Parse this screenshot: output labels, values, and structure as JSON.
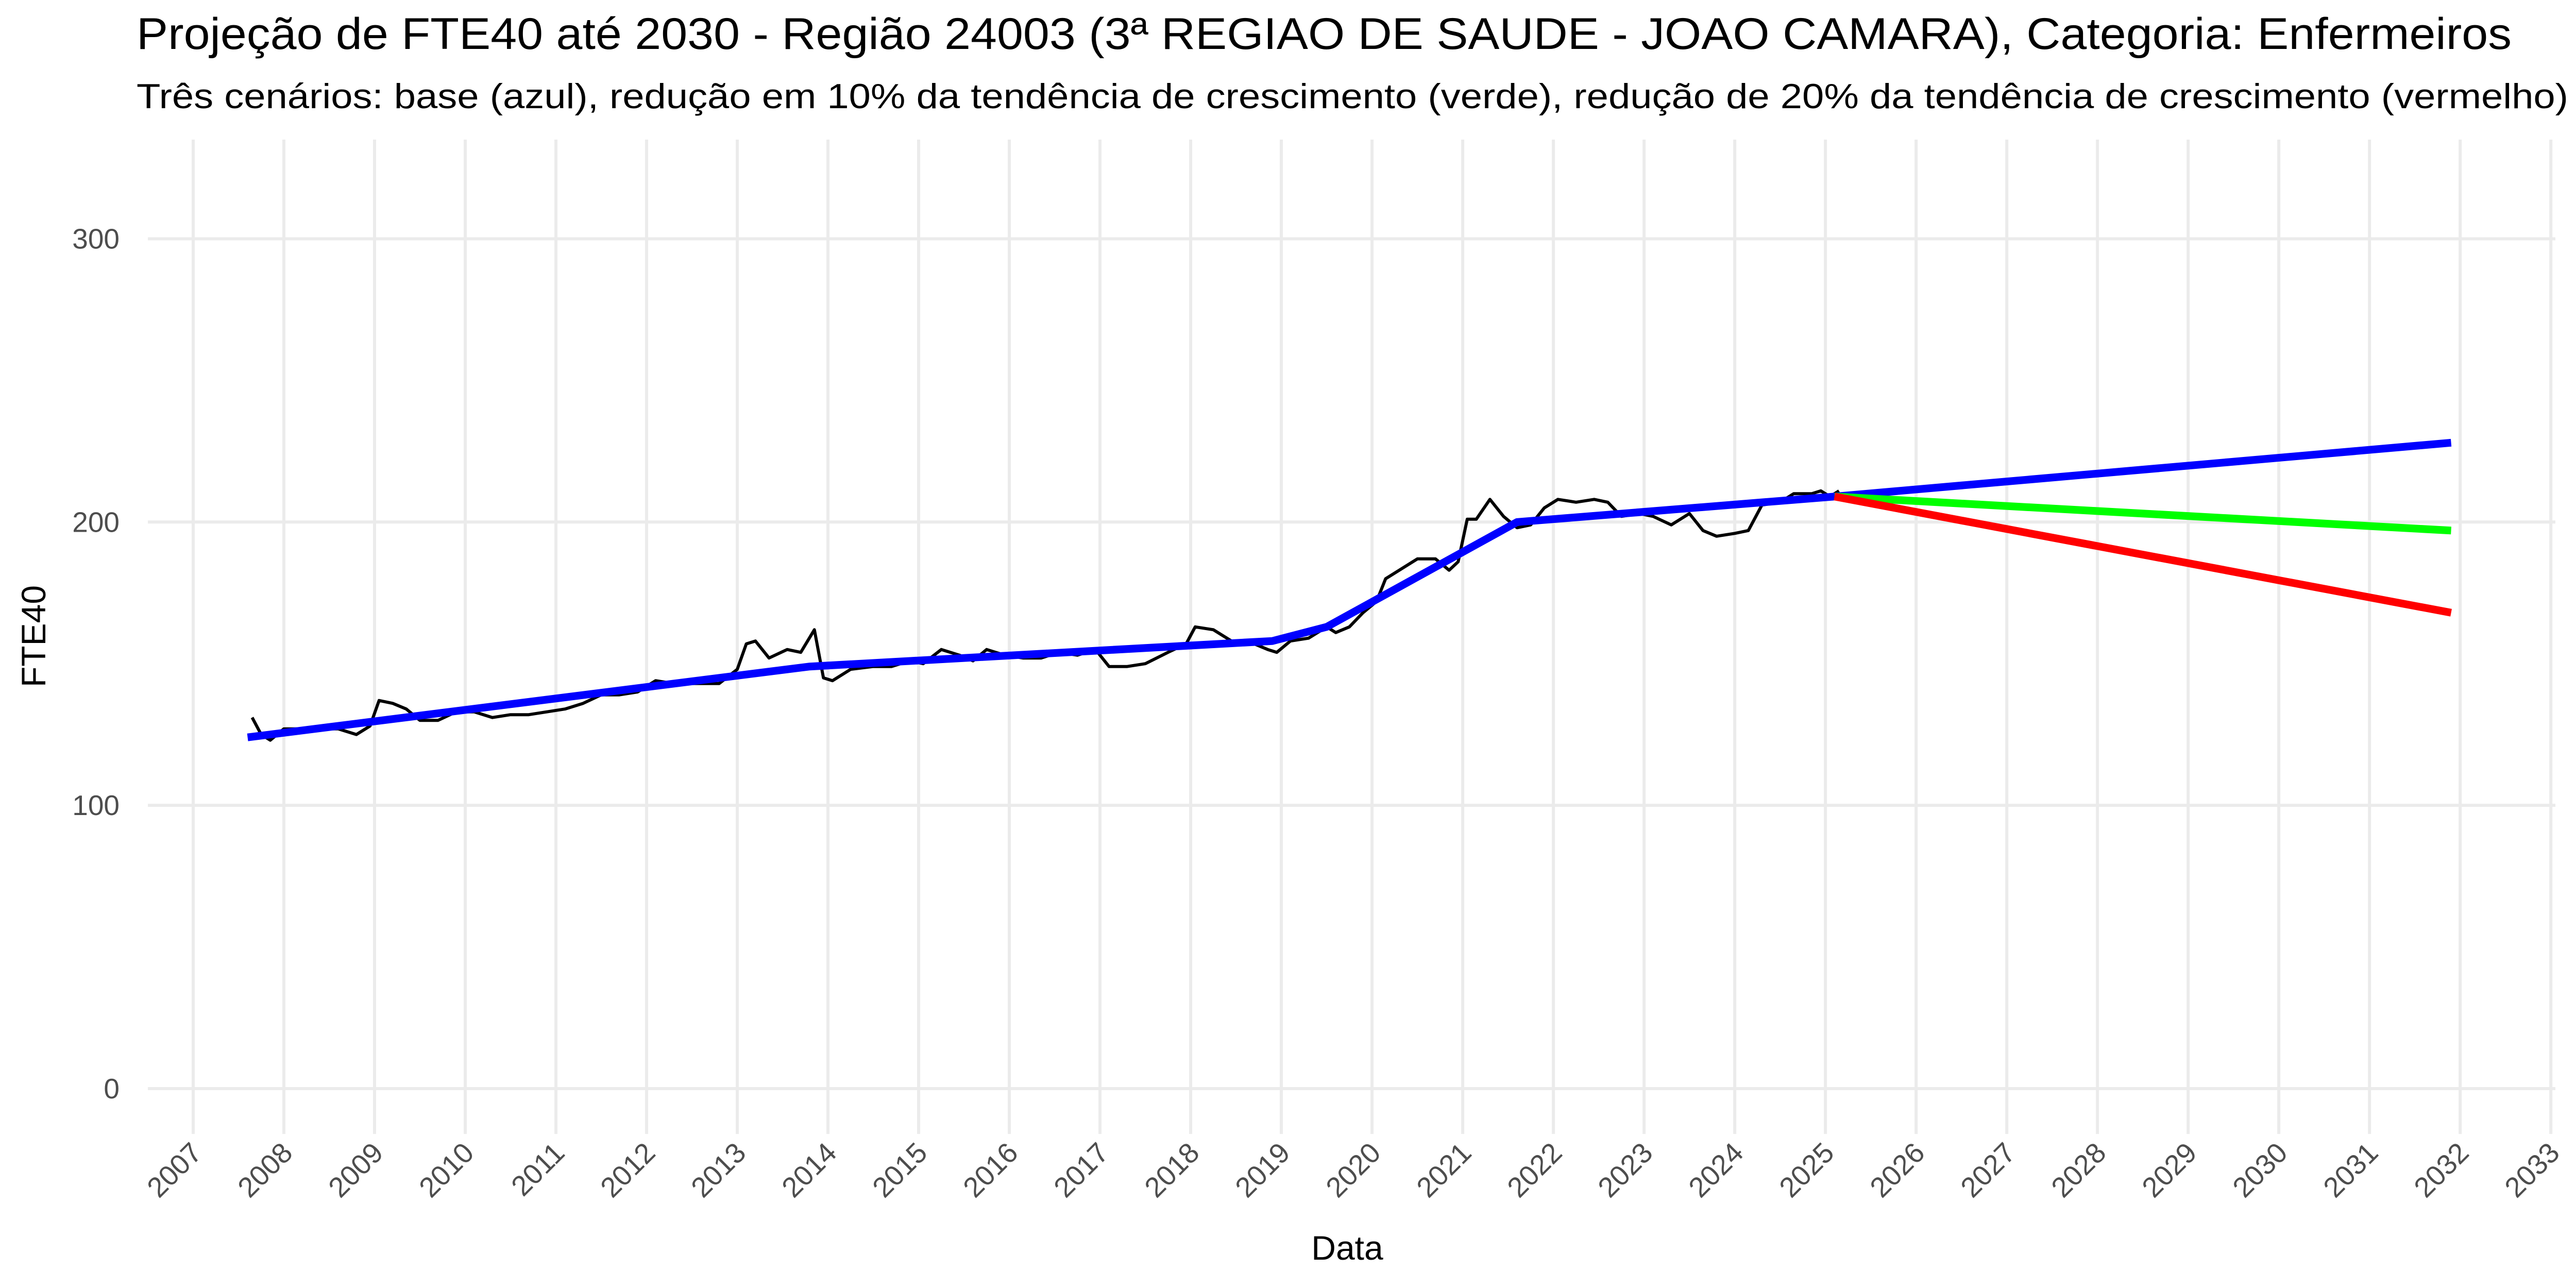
{
  "chart_data": {
    "type": "line",
    "title": "Projeção de FTE40 até 2030 - Região 24003 (3ª REGIAO DE SAUDE - JOAO CAMARA), Categoria: Enfermeiros",
    "subtitle": "Três cenários: base (azul), redução em 10% da tendência de crescimento (verde), redução de 20% da tendência de crescimento (vermelho)",
    "x_label": "Data",
    "y_label": "FTE40",
    "xlim": [
      2006.5,
      2033.05
    ],
    "ylim": [
      -16,
      335
    ],
    "xticks": [
      2007,
      2008,
      2009,
      2010,
      2011,
      2012,
      2013,
      2014,
      2015,
      2016,
      2017,
      2018,
      2019,
      2020,
      2021,
      2022,
      2023,
      2024,
      2025,
      2026,
      2027,
      2028,
      2029,
      2030,
      2031,
      2032,
      2033
    ],
    "yticks": [
      0,
      100,
      200,
      300
    ],
    "grid": true,
    "series": [
      {
        "color": "#000000",
        "width": 6,
        "x": [
          2007.65,
          2007.75,
          2007.85,
          2008.0,
          2008.3,
          2008.6,
          2008.8,
          2008.95,
          2009.05,
          2009.2,
          2009.35,
          2009.5,
          2009.7,
          2009.9,
          2010.1,
          2010.3,
          2010.5,
          2010.7,
          2010.9,
          2011.1,
          2011.3,
          2011.5,
          2011.7,
          2011.9,
          2012.1,
          2012.3,
          2012.5,
          2012.8,
          2013.0,
          2013.1,
          2013.2,
          2013.35,
          2013.55,
          2013.7,
          2013.85,
          2013.95,
          2014.05,
          2014.25,
          2014.5,
          2014.7,
          2014.9,
          2015.05,
          2015.25,
          2015.45,
          2015.6,
          2015.75,
          2015.95,
          2016.15,
          2016.35,
          2016.55,
          2016.75,
          2016.95,
          2017.1,
          2017.3,
          2017.5,
          2017.75,
          2017.95,
          2018.05,
          2018.25,
          2018.45,
          2018.7,
          2018.85,
          2018.95,
          2019.1,
          2019.3,
          2019.5,
          2019.6,
          2019.75,
          2019.9,
          2020.05,
          2020.15,
          2020.3,
          2020.5,
          2020.7,
          2020.85,
          2020.95,
          2021.05,
          2021.15,
          2021.3,
          2021.45,
          2021.6,
          2021.75,
          2021.9,
          2022.05,
          2022.25,
          2022.45,
          2022.6,
          2022.75,
          2022.95,
          2023.1,
          2023.3,
          2023.5,
          2023.65,
          2023.8,
          2024.0,
          2024.15,
          2024.3,
          2024.5,
          2024.65,
          2024.85,
          2024.95,
          2025.05,
          2025.15
        ],
        "values": [
          131,
          125,
          123,
          127,
          127,
          127,
          125,
          128,
          137,
          136,
          134,
          130,
          130,
          133,
          133,
          131,
          132,
          132,
          133,
          134,
          136,
          139,
          139,
          140,
          144,
          143,
          143,
          143,
          148,
          157,
          158,
          152,
          155,
          154,
          162,
          145,
          144,
          148,
          149,
          149,
          151,
          150,
          155,
          153,
          151,
          155,
          153,
          152,
          152,
          154,
          153,
          155,
          149,
          149,
          150,
          154,
          157,
          163,
          162,
          158,
          157,
          155,
          154,
          158,
          159,
          163,
          161,
          163,
          168,
          172,
          180,
          183,
          187,
          187,
          183,
          186,
          201,
          201,
          208,
          202,
          198,
          199,
          205,
          208,
          207,
          208,
          207,
          202,
          203,
          202,
          199,
          203,
          197,
          195,
          196,
          197,
          206,
          207,
          210,
          210,
          211,
          209,
          211
        ]
      },
      {
        "color": "#0000ff",
        "width": 15,
        "x": [
          2007.6,
          2013.8,
          2018.9,
          2019.5,
          2021.6,
          2025.1,
          2031.9
        ],
        "values": [
          124,
          149,
          158,
          163,
          200,
          209,
          228
        ]
      },
      {
        "color": "#00ff00",
        "width": 15,
        "x": [
          2025.1,
          2031.9
        ],
        "values": [
          209,
          197
        ]
      },
      {
        "color": "#ff0000",
        "width": 15,
        "x": [
          2025.1,
          2031.9
        ],
        "values": [
          209,
          168
        ]
      }
    ]
  }
}
